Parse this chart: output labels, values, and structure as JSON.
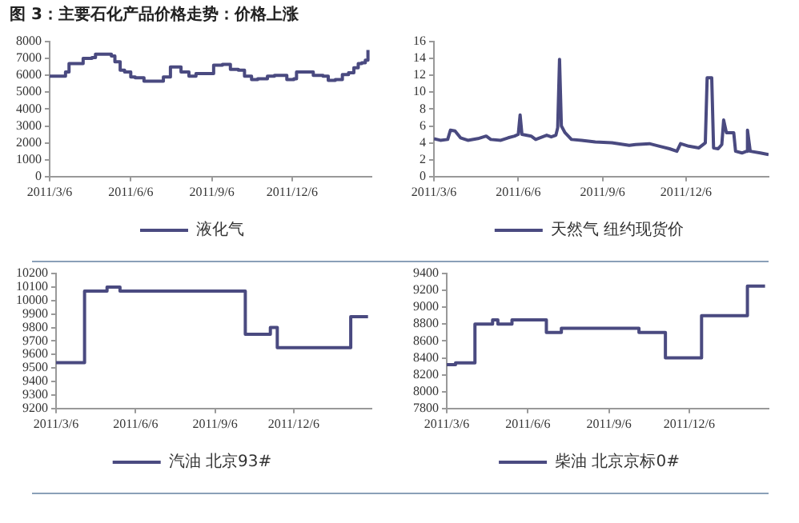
{
  "chart_data": [
    {
      "type": "step",
      "title": "图 3：主要石化产品价格走势：价格上涨",
      "x": [
        "2011-03-06",
        "2011-03-21",
        "2011-03-24",
        "2011-03-28",
        "2011-04-10",
        "2011-04-13",
        "2011-04-23",
        "2011-04-27",
        "2011-05-08",
        "2011-05-15",
        "2011-05-19",
        "2011-05-25",
        "2011-05-30",
        "2011-06-06",
        "2011-06-11",
        "2011-06-21",
        "2011-07-06",
        "2011-07-13",
        "2011-07-21",
        "2011-07-28",
        "2011-08-02",
        "2011-08-11",
        "2011-08-19",
        "2011-09-03",
        "2011-09-08",
        "2011-09-18",
        "2011-09-27",
        "2011-10-06",
        "2011-10-13",
        "2011-10-21",
        "2011-10-28",
        "2011-11-08",
        "2011-11-16",
        "2011-11-26",
        "2011-11-30",
        "2011-12-08",
        "2011-12-11",
        "2011-12-26",
        "2011-12-30",
        "2012-01-10",
        "2012-01-16",
        "2012-01-24",
        "2012-02-01",
        "2012-02-08",
        "2012-02-14",
        "2012-02-19",
        "2012-02-23",
        "2012-02-27",
        "2012-03-01"
      ],
      "series": [
        {
          "name": "液化气",
          "color": "#4a4a80",
          "values": [
            5950,
            5950,
            6200,
            6700,
            6700,
            7000,
            7050,
            7250,
            7250,
            7150,
            6800,
            6300,
            6200,
            5900,
            5850,
            5650,
            5650,
            5900,
            6500,
            6500,
            6200,
            5950,
            6100,
            6100,
            6600,
            6650,
            6350,
            6300,
            5950,
            5750,
            5800,
            5950,
            6000,
            6000,
            5750,
            5800,
            6200,
            6200,
            6000,
            5950,
            5700,
            5750,
            6050,
            6150,
            6450,
            6700,
            6750,
            6900,
            7500
          ]
        }
      ],
      "xlim": [
        "2011-03-06",
        "2012-03-05"
      ],
      "xticks": [
        {
          "value": "2011-03-06",
          "label": "2011/3/6"
        },
        {
          "value": "2011-06-06",
          "label": "2011/6/6"
        },
        {
          "value": "2011-09-06",
          "label": "2011/9/6"
        },
        {
          "value": "2011-12-06",
          "label": "2011/12/6"
        }
      ],
      "ylim": [
        0,
        8000
      ],
      "yticks": [
        0,
        1000,
        2000,
        3000,
        4000,
        5000,
        6000,
        7000,
        8000
      ],
      "grid": false,
      "legend": "bottom",
      "marker": "none",
      "line_style": "solid"
    },
    {
      "type": "line",
      "x": [
        "2011-03-06",
        "2011-03-13",
        "2011-03-21",
        "2011-03-24",
        "2011-03-29",
        "2011-04-04",
        "2011-04-12",
        "2011-04-23",
        "2011-05-02",
        "2011-05-07",
        "2011-05-18",
        "2011-05-26",
        "2011-06-02",
        "2011-06-06",
        "2011-06-08",
        "2011-06-10",
        "2011-06-20",
        "2011-06-25",
        "2011-07-07",
        "2011-07-12",
        "2011-07-17",
        "2011-07-19",
        "2011-07-21",
        "2011-07-23",
        "2011-07-27",
        "2011-08-03",
        "2011-08-14",
        "2011-08-29",
        "2011-09-16",
        "2011-10-05",
        "2011-10-12",
        "2011-10-27",
        "2011-11-07",
        "2011-11-18",
        "2011-11-26",
        "2011-11-30",
        "2011-12-09",
        "2011-12-20",
        "2011-12-27",
        "2011-12-29",
        "2012-01-03",
        "2012-01-05",
        "2012-01-10",
        "2012-01-14",
        "2012-01-16",
        "2012-01-19",
        "2012-01-27",
        "2012-01-29",
        "2012-02-05",
        "2012-02-10",
        "2012-02-11",
        "2012-02-14",
        "2012-02-25",
        "2012-03-05"
      ],
      "series": [
        {
          "name": "天然气 纽约现货价",
          "color": "#4a4a80",
          "values": [
            4.5,
            4.3,
            4.4,
            5.5,
            5.4,
            4.6,
            4.3,
            4.5,
            4.8,
            4.4,
            4.3,
            4.6,
            4.8,
            5.0,
            7.3,
            5.0,
            4.8,
            4.4,
            4.9,
            4.7,
            4.9,
            5.8,
            13.9,
            6.0,
            5.2,
            4.4,
            4.3,
            4.1,
            4.0,
            3.7,
            3.8,
            3.9,
            3.6,
            3.3,
            3.0,
            3.9,
            3.6,
            3.4,
            4.0,
            11.7,
            11.7,
            3.4,
            3.3,
            3.8,
            6.7,
            5.2,
            5.2,
            3.0,
            2.8,
            3.0,
            5.5,
            3.0,
            2.8,
            2.6
          ]
        }
      ],
      "xlim": [
        "2011-03-06",
        "2012-03-05"
      ],
      "xticks": [
        {
          "value": "2011-03-06",
          "label": "2011/3/6"
        },
        {
          "value": "2011-06-06",
          "label": "2011/6/6"
        },
        {
          "value": "2011-09-06",
          "label": "2011/9/6"
        },
        {
          "value": "2011-12-06",
          "label": "2011/12/6"
        }
      ],
      "ylim": [
        0,
        16
      ],
      "yticks": [
        0,
        2,
        4,
        6,
        8,
        10,
        12,
        14,
        16
      ],
      "grid": false,
      "legend": "bottom",
      "marker": "none",
      "line_style": "solid"
    },
    {
      "type": "step",
      "x": [
        "2011-03-06",
        "2011-04-08",
        "2011-05-04",
        "2011-05-19",
        "2011-10-11",
        "2011-11-09",
        "2011-11-17",
        "2012-02-10",
        "2012-03-01"
      ],
      "series": [
        {
          "name": "汽油 北京93#",
          "color": "#4a4a80",
          "values": [
            9540,
            10070,
            10100,
            10070,
            9750,
            9800,
            9650,
            9880,
            9880
          ]
        }
      ],
      "xlim": [
        "2011-03-06",
        "2012-03-05"
      ],
      "xticks": [
        {
          "value": "2011-03-06",
          "label": "2011/3/6"
        },
        {
          "value": "2011-06-06",
          "label": "2011/6/6"
        },
        {
          "value": "2011-09-06",
          "label": "2011/9/6"
        },
        {
          "value": "2011-12-06",
          "label": "2011/12/6"
        }
      ],
      "ylim": [
        9200,
        10200
      ],
      "yticks": [
        9200,
        9300,
        9400,
        9500,
        9600,
        9700,
        9800,
        9900,
        10000,
        10100,
        10200
      ],
      "grid": false,
      "legend": "bottom",
      "marker": "none",
      "line_style": "solid"
    },
    {
      "type": "step",
      "x": [
        "2011-03-06",
        "2011-03-16",
        "2011-04-07",
        "2011-04-27",
        "2011-05-03",
        "2011-05-19",
        "2011-06-27",
        "2011-07-14",
        "2011-10-10",
        "2011-11-09",
        "2011-12-20",
        "2012-02-10",
        "2012-03-01"
      ],
      "series": [
        {
          "name": "柴油 北京京标0#",
          "color": "#4a4a80",
          "values": [
            8320,
            8340,
            8800,
            8850,
            8800,
            8850,
            8700,
            8750,
            8700,
            8400,
            8900,
            9250,
            9250
          ]
        }
      ],
      "xlim": [
        "2011-03-06",
        "2012-03-05"
      ],
      "xticks": [
        {
          "value": "2011-03-06",
          "label": "2011/3/6"
        },
        {
          "value": "2011-06-06",
          "label": "2011/6/6"
        },
        {
          "value": "2011-09-06",
          "label": "2011/9/6"
        },
        {
          "value": "2011-12-06",
          "label": "2011/12/6"
        }
      ],
      "ylim": [
        7800,
        9400
      ],
      "yticks": [
        7800,
        8000,
        8200,
        8400,
        8600,
        8800,
        9000,
        9200,
        9400
      ],
      "grid": false,
      "legend": "bottom",
      "marker": "none",
      "line_style": "solid"
    }
  ]
}
